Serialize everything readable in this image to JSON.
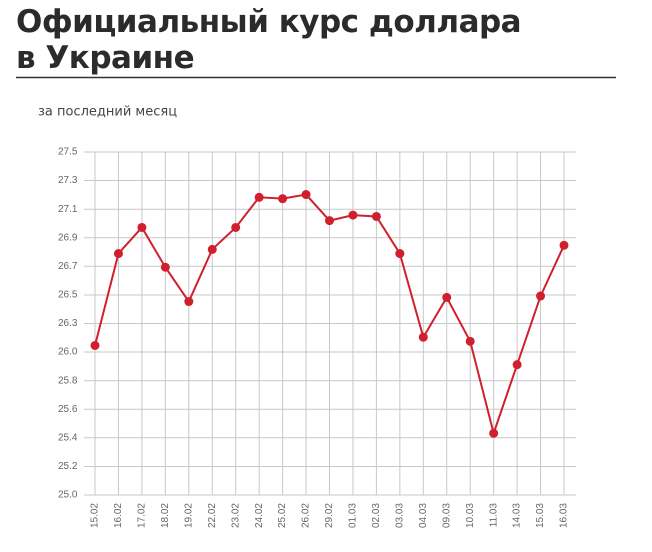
{
  "chart_data": {
    "type": "line",
    "title": "Официальный курс доллара в Украине",
    "subtitle": "за последний месяц",
    "categories": [
      "15.02",
      "16.02",
      "17.02",
      "18.02",
      "19.02",
      "22.02",
      "23.02",
      "24.02",
      "25.02",
      "26.02",
      "29.02",
      "01.03",
      "02.03",
      "03.03",
      "04.03",
      "09.03",
      "10.03",
      "11.03",
      "14.03",
      "15.03",
      "16.03"
    ],
    "series": [
      {
        "color": "#d0202e",
        "values": [
          26.09,
          26.76,
          26.95,
          26.66,
          26.41,
          26.79,
          26.95,
          27.17,
          27.16,
          27.19,
          27.0,
          27.04,
          27.03,
          26.76,
          26.15,
          26.44,
          26.12,
          25.45,
          25.95,
          26.45,
          26.82
        ]
      }
    ],
    "ylim": [
      25.0,
      27.5
    ],
    "yticks": [
      {
        "value": 25.0,
        "label": "25.0"
      },
      {
        "value": 25.208,
        "label": "25.2"
      },
      {
        "value": 25.417,
        "label": "25.4"
      },
      {
        "value": 25.625,
        "label": "25.6"
      },
      {
        "value": 25.833,
        "label": "25.8"
      },
      {
        "value": 26.042,
        "label": "26.0"
      },
      {
        "value": 26.25,
        "label": "26.3"
      },
      {
        "value": 26.458,
        "label": "26.5"
      },
      {
        "value": 26.667,
        "label": "26.7"
      },
      {
        "value": 26.875,
        "label": "26.9"
      },
      {
        "value": 27.083,
        "label": "27.1"
      },
      {
        "value": 27.292,
        "label": "27.3"
      },
      {
        "value": 27.5,
        "label": "27.5"
      }
    ],
    "grid": true
  }
}
